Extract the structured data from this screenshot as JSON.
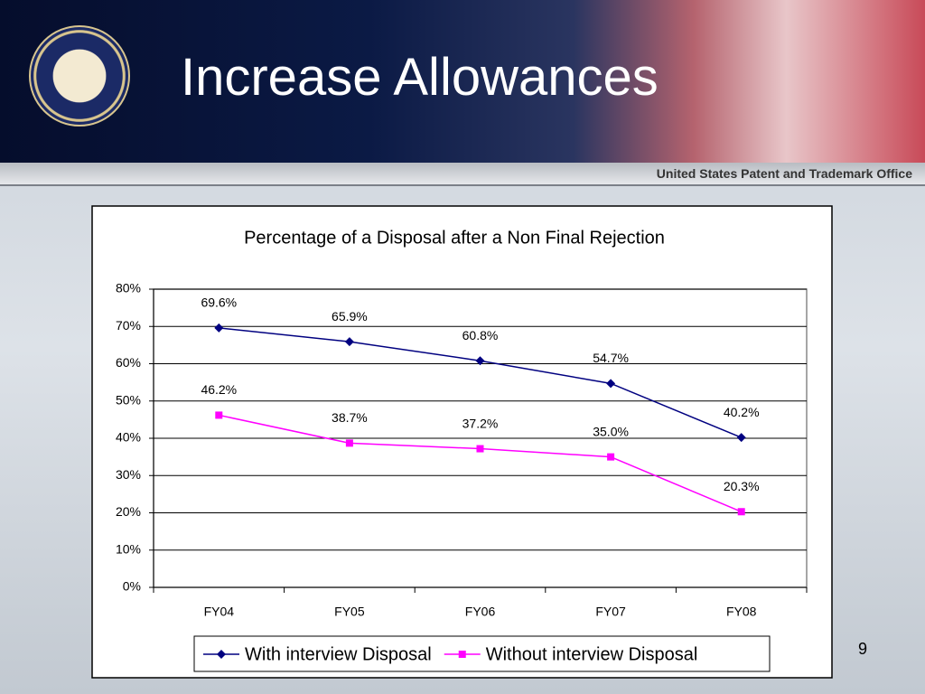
{
  "slide": {
    "title": "Increase Allowances",
    "header_text": "United States Patent and Trademark Office",
    "page_number": "9"
  },
  "chart_data": {
    "type": "line",
    "title": "Percentage of a Disposal after a Non Final Rejection",
    "categories": [
      "FY04",
      "FY05",
      "FY06",
      "FY07",
      "FY08"
    ],
    "series": [
      {
        "name": "With interview Disposal",
        "color": "#000080",
        "marker": "diamond",
        "values": [
          69.6,
          65.9,
          60.8,
          54.7,
          40.2
        ],
        "value_labels": [
          "69.6%",
          "65.9%",
          "60.8%",
          "54.7%",
          "40.2%"
        ]
      },
      {
        "name": "Without interview Disposal",
        "color": "#ff00ff",
        "marker": "square",
        "values": [
          46.2,
          38.7,
          37.2,
          35.0,
          20.3
        ],
        "value_labels": [
          "46.2%",
          "38.7%",
          "37.2%",
          "35.0%",
          "20.3%"
        ]
      }
    ],
    "ylim": [
      0,
      80
    ],
    "yticks": [
      {
        "value": 0,
        "label": "0%"
      },
      {
        "value": 10,
        "label": "10%"
      },
      {
        "value": 20,
        "label": "20%"
      },
      {
        "value": 30,
        "label": "30%"
      },
      {
        "value": 40,
        "label": "40%"
      },
      {
        "value": 50,
        "label": "50%"
      },
      {
        "value": 60,
        "label": "60%"
      },
      {
        "value": 70,
        "label": "70%"
      },
      {
        "value": 80,
        "label": "80%"
      }
    ],
    "grid": true,
    "legend": "bottom"
  }
}
